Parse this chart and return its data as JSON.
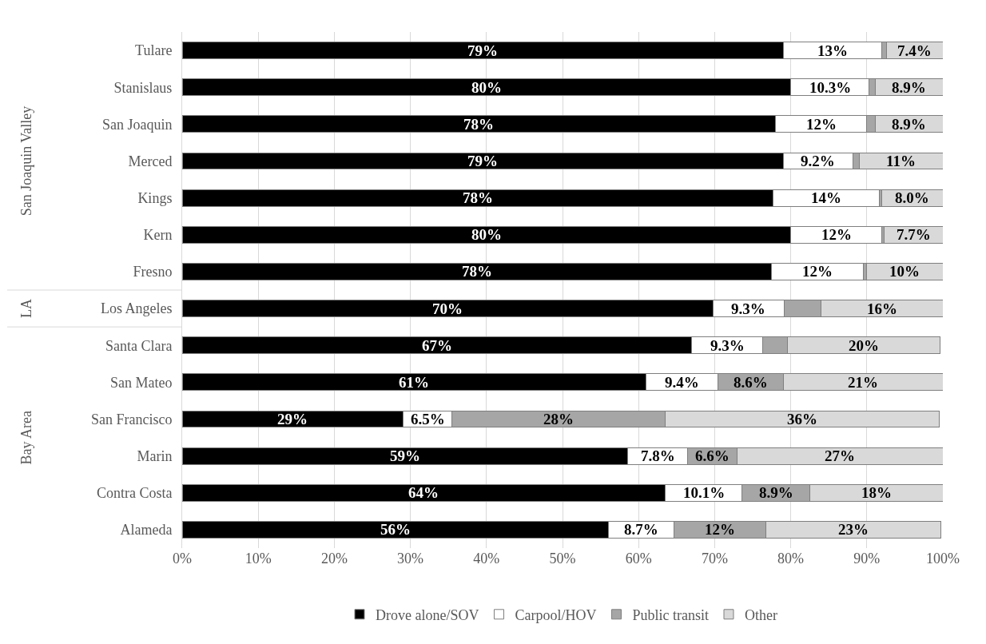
{
  "chart_data": {
    "type": "bar",
    "orientation": "horizontal",
    "stacked": true,
    "categories": [
      "Tulare",
      "Stanislaus",
      "San Joaquin",
      "Merced",
      "Kings",
      "Kern",
      "Fresno",
      "Los Angeles",
      "Santa Clara",
      "San Mateo",
      "San Francisco",
      "Marin",
      "Contra Costa",
      "Alameda"
    ],
    "series": [
      {
        "name": "Drove alone/SOV",
        "color": "#000000",
        "values": [
          79,
          80,
          78,
          79,
          77.7,
          80,
          77.5,
          69.8,
          67,
          61,
          29,
          58.6,
          63.5,
          56
        ],
        "value_labels": [
          "79%",
          "80%",
          "78%",
          "79%",
          "78%",
          "80%",
          "78%",
          "70%",
          "67%",
          "61%",
          "29%",
          "59%",
          "64%",
          "56%"
        ]
      },
      {
        "name": "Carpool/HOV",
        "color": "#ffffff",
        "values": [
          13,
          10.3,
          12,
          9.2,
          14,
          12,
          12,
          9.3,
          9.3,
          9.4,
          6.5,
          7.8,
          10.1,
          8.7
        ],
        "value_labels": [
          "13%",
          "10.3%",
          "12%",
          "9.2%",
          "14%",
          "12%",
          "12%",
          "9.3%",
          "9.3%",
          "9.4%",
          "6.5%",
          "7.8%",
          "10.1%",
          "8.7%"
        ]
      },
      {
        "name": "Public transit",
        "color": "#a6a6a6",
        "values": [
          0.6,
          0.8,
          1.1,
          0.8,
          0.3,
          0.3,
          0.5,
          4.9,
          3.3,
          8.6,
          28,
          6.6,
          8.9,
          12
        ],
        "value_labels": [
          null,
          null,
          null,
          null,
          null,
          null,
          null,
          null,
          null,
          "8.6%",
          "28%",
          "6.6%",
          "8.9%",
          "12%"
        ]
      },
      {
        "name": "Other",
        "color": "#d9d9d9",
        "values": [
          7.4,
          8.9,
          8.9,
          11,
          8.0,
          7.7,
          10,
          16,
          20,
          21,
          36,
          27,
          17.5,
          23
        ],
        "value_labels": [
          "7.4%",
          "8.9%",
          "8.9%",
          "11%",
          "8.0%",
          "7.7%",
          "10%",
          "16%",
          "20%",
          "21%",
          "36%",
          "27%",
          "18%",
          "23%"
        ]
      }
    ],
    "xlim": [
      0,
      100
    ],
    "xticks": [
      {
        "value": 0,
        "label": "0%"
      },
      {
        "value": 10,
        "label": "10%"
      },
      {
        "value": 20,
        "label": "20%"
      },
      {
        "value": 30,
        "label": "30%"
      },
      {
        "value": 40,
        "label": "40%"
      },
      {
        "value": 50,
        "label": "50%"
      },
      {
        "value": 60,
        "label": "60%"
      },
      {
        "value": 70,
        "label": "70%"
      },
      {
        "value": 80,
        "label": "80%"
      },
      {
        "value": 90,
        "label": "90%"
      },
      {
        "value": 100,
        "label": "100%"
      }
    ],
    "grid": "x",
    "legend": "bottom",
    "annotations": [
      "San Joaquin Valley",
      "LA",
      "Bay Area"
    ]
  }
}
